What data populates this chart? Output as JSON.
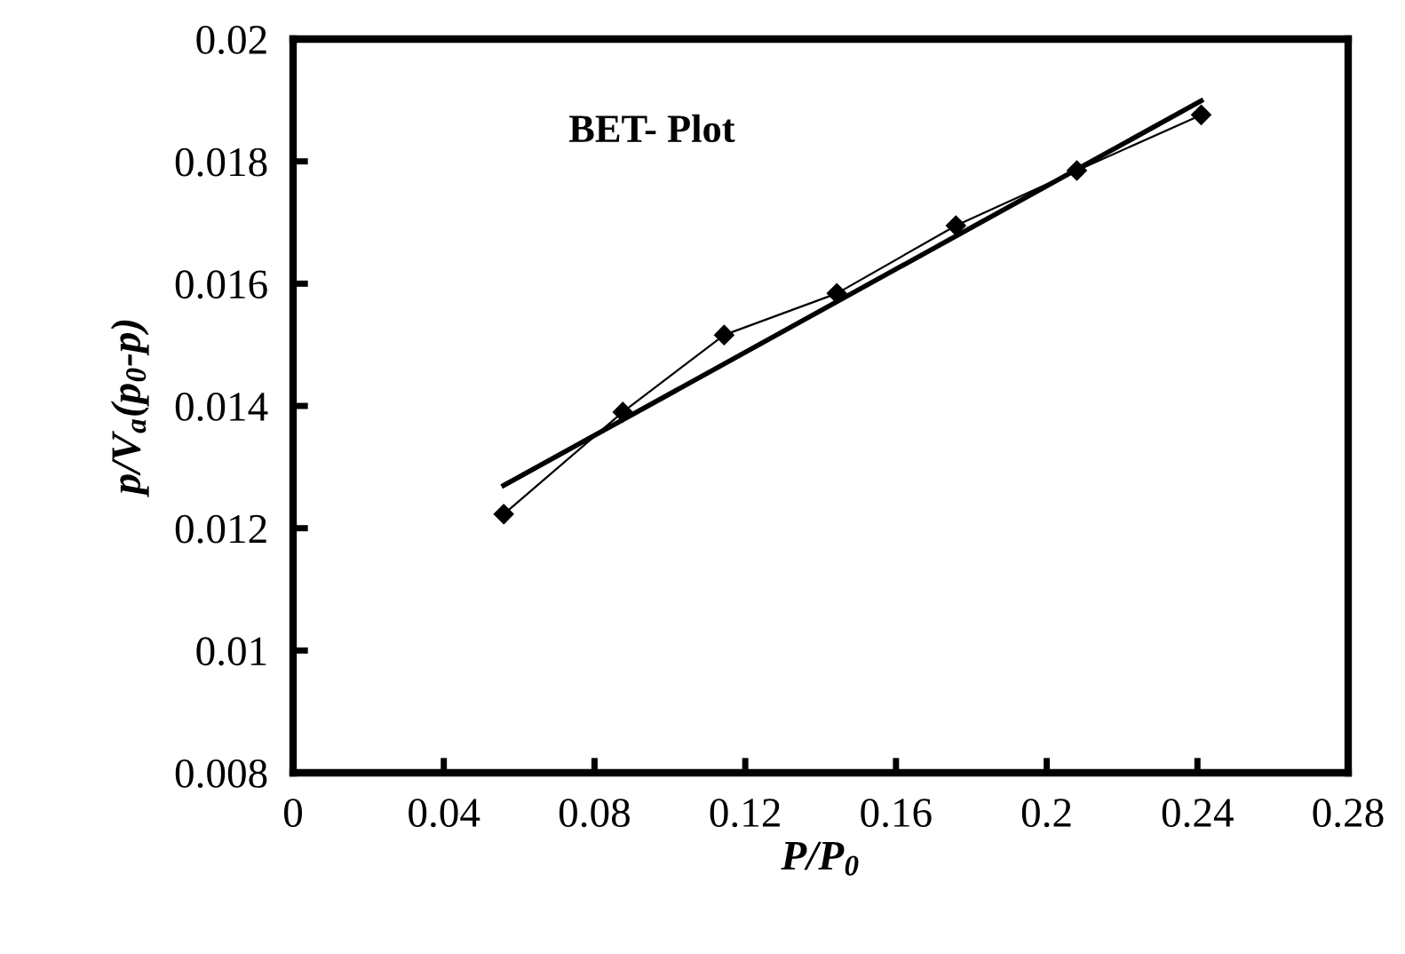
{
  "chart_data": {
    "type": "line",
    "title": "BET- Plot",
    "xlabel": "P/P$_{0}$",
    "ylabel": "p/V$_{a}$(p$_{0}$-p)",
    "x": [
      0.0559,
      0.0875,
      0.1144,
      0.1443,
      0.1759,
      0.208,
      0.241
    ],
    "series": [
      {
        "color": "#000000",
        "marker": "diamond",
        "line_style": "solid",
        "values": [
          0.01223,
          0.0139,
          0.01516,
          0.01584,
          0.01695,
          0.01785,
          0.01876
        ]
      },
      {
        "type": "line",
        "color": "#000000",
        "marker": "none",
        "line_style": "solid",
        "x": [
          0.0559,
          0.241
        ],
        "values": [
          0.0127,
          0.01899
        ]
      }
    ],
    "xlim": [
      0,
      0.28
    ],
    "xticks": [
      0,
      0.04,
      0.08,
      0.12,
      0.16,
      0.2,
      0.24,
      0.28
    ],
    "ylim": [
      0.008,
      0.02
    ],
    "yticks": [
      0.008,
      0.01,
      0.012,
      0.014,
      0.016,
      0.018,
      0.02
    ],
    "grid": false,
    "legend": false
  }
}
